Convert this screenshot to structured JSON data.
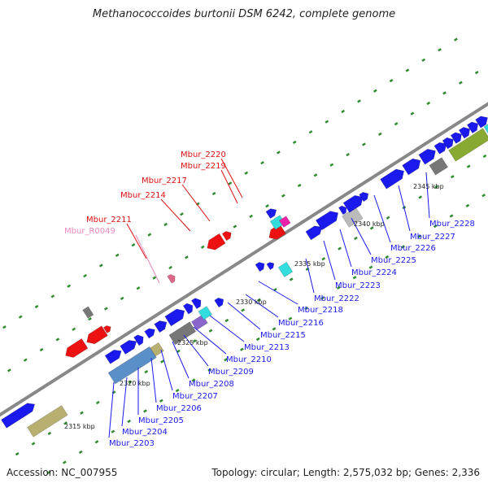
{
  "title": "Methanococcoides burtonii DSM 6242, complete genome",
  "footer": {
    "accession": "Accession: NC_007955",
    "summary": "Topology: circular; Length: 2,575,032 bp; Genes: 2,336"
  },
  "colors": {
    "forward_gene": "#1a1aee",
    "red_gene": "#ee1111",
    "red_label": "#dd1111",
    "pink_label": "#ee88bb",
    "blue_label": "#1a1aee",
    "backbone": "#888888",
    "tick": "#2e8b2e",
    "olive": "#b8b070",
    "steel": "#5a8fc8",
    "cyan": "#33dddd",
    "gray": "#777777"
  },
  "scale_labels": [
    "2315 kbp",
    "2320 kbp",
    "2325 kbp",
    "2330 kbp",
    "2335 kbp",
    "2340 kbp",
    "2345 kbp"
  ],
  "red_labels": [
    "Mbur_2220",
    "Mbur_2219",
    "Mbur_2217",
    "Mbur_2214",
    "Mbur_2211"
  ],
  "pink_labels": [
    "Mbur_R0049"
  ],
  "blue_labels": [
    "Mbur_2203",
    "Mbur_2204",
    "Mbur_2205",
    "Mbur_2206",
    "Mbur_2207",
    "Mbur_2208",
    "Mbur_2209",
    "Mbur_2210",
    "Mbur_2213",
    "Mbur_2215",
    "Mbur_2216",
    "Mbur_2218",
    "Mbur_2222",
    "Mbur_2223",
    "Mbur_2224",
    "Mbur_2225",
    "Mbur_2226",
    "Mbur_2227",
    "Mbur_2228"
  ]
}
